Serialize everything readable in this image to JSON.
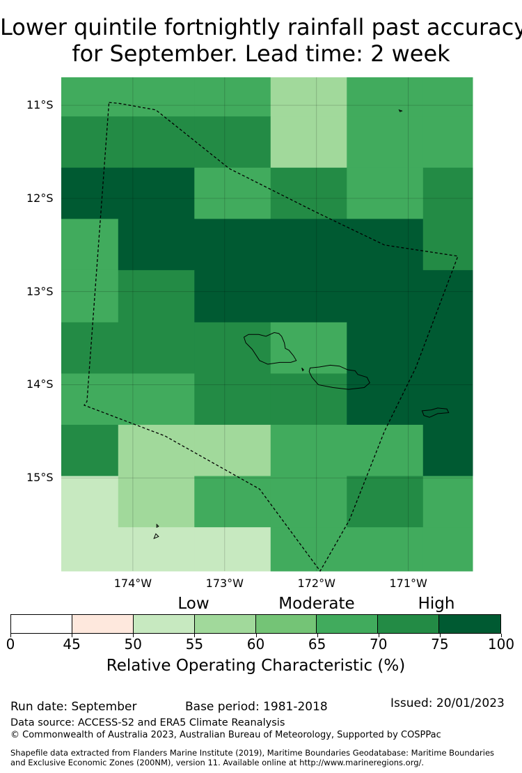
{
  "title": {
    "line1": "Lower quintile fortnightly rainfall past accuracy",
    "line2": "for September. Lead time: 2 week"
  },
  "map": {
    "lon_range": [
      -174.78,
      -170.3
    ],
    "lat_range": [
      -16.0,
      -10.7
    ],
    "lat_ticks": [
      {
        "value": -11,
        "label": "11°S"
      },
      {
        "value": -12,
        "label": "12°S"
      },
      {
        "value": -13,
        "label": "13°S"
      },
      {
        "value": -14,
        "label": "14°S"
      },
      {
        "value": -15,
        "label": "15°S"
      }
    ],
    "lon_ticks": [
      {
        "value": -174,
        "label": "174°W"
      },
      {
        "value": -173,
        "label": "173°W"
      },
      {
        "value": -172,
        "label": "172°W"
      },
      {
        "value": -171,
        "label": "171°W"
      }
    ],
    "grid_lon_edges": [
      -174.78,
      -174.16,
      -173.33,
      -172.5,
      -171.67,
      -170.84,
      -170.3
    ],
    "grid_lat_edges": [
      -10.7,
      -11.12,
      -11.67,
      -12.22,
      -12.77,
      -13.33,
      -13.88,
      -14.43,
      -14.98,
      -15.53,
      -16.0
    ],
    "grid_roc_classes": [
      [
        70,
        70,
        70,
        60,
        70,
        70
      ],
      [
        75,
        75,
        75,
        60,
        70,
        70
      ],
      [
        100,
        100,
        70,
        75,
        70,
        75
      ],
      [
        70,
        100,
        100,
        100,
        100,
        75
      ],
      [
        70,
        75,
        100,
        100,
        100,
        100
      ],
      [
        75,
        75,
        75,
        70,
        100,
        100
      ],
      [
        70,
        70,
        75,
        75,
        100,
        100
      ],
      [
        75,
        60,
        60,
        70,
        70,
        100
      ],
      [
        55,
        60,
        70,
        70,
        75,
        70
      ],
      [
        55,
        55,
        55,
        70,
        70,
        70
      ]
    ],
    "eez_boundary": [
      [
        -174.26,
        -10.97
      ],
      [
        -174.15,
        -10.98
      ],
      [
        -173.75,
        -11.05
      ],
      [
        -172.95,
        -11.68
      ],
      [
        -172.0,
        -12.15
      ],
      [
        -171.26,
        -12.5
      ],
      [
        -170.46,
        -12.62
      ],
      [
        -170.92,
        -13.82
      ],
      [
        -171.26,
        -14.5
      ],
      [
        -171.64,
        -15.45
      ],
      [
        -171.96,
        -16.0
      ],
      [
        -172.62,
        -15.12
      ],
      [
        -173.65,
        -14.55
      ],
      [
        -174.53,
        -14.22
      ],
      [
        -174.5,
        -14.18
      ],
      [
        -174.26,
        -10.97
      ]
    ],
    "coastlines": {
      "savaii": [
        [
          -172.79,
          -13.49
        ],
        [
          -172.74,
          -13.46
        ],
        [
          -172.63,
          -13.46
        ],
        [
          -172.55,
          -13.48
        ],
        [
          -172.46,
          -13.44
        ],
        [
          -172.41,
          -13.45
        ],
        [
          -172.38,
          -13.48
        ],
        [
          -172.35,
          -13.55
        ],
        [
          -172.34,
          -13.61
        ],
        [
          -172.3,
          -13.63
        ],
        [
          -172.25,
          -13.69
        ],
        [
          -172.22,
          -13.74
        ],
        [
          -172.28,
          -13.76
        ],
        [
          -172.4,
          -13.76
        ],
        [
          -172.53,
          -13.78
        ],
        [
          -172.62,
          -13.74
        ],
        [
          -172.7,
          -13.62
        ],
        [
          -172.77,
          -13.55
        ],
        [
          -172.79,
          -13.49
        ]
      ],
      "upolu": [
        [
          -172.07,
          -13.82
        ],
        [
          -171.97,
          -13.81
        ],
        [
          -171.85,
          -13.79
        ],
        [
          -171.75,
          -13.8
        ],
        [
          -171.66,
          -13.84
        ],
        [
          -171.58,
          -13.85
        ],
        [
          -171.55,
          -13.89
        ],
        [
          -171.45,
          -13.92
        ],
        [
          -171.42,
          -13.98
        ],
        [
          -171.48,
          -14.03
        ],
        [
          -171.65,
          -14.05
        ],
        [
          -171.82,
          -14.03
        ],
        [
          -171.98,
          -14.0
        ],
        [
          -172.05,
          -13.92
        ],
        [
          -172.08,
          -13.86
        ],
        [
          -172.07,
          -13.82
        ]
      ],
      "tutuila": [
        [
          -170.85,
          -14.28
        ],
        [
          -170.75,
          -14.27
        ],
        [
          -170.68,
          -14.25
        ],
        [
          -170.58,
          -14.26
        ],
        [
          -170.56,
          -14.3
        ],
        [
          -170.68,
          -14.31
        ],
        [
          -170.77,
          -14.35
        ],
        [
          -170.83,
          -14.33
        ],
        [
          -170.85,
          -14.28
        ]
      ],
      "islets": [
        [
          [
            -171.1,
            -11.05
          ],
          [
            -171.07,
            -11.06
          ],
          [
            -171.09,
            -11.07
          ]
        ],
        [
          [
            -173.74,
            -15.5
          ],
          [
            -173.72,
            -15.52
          ],
          [
            -173.74,
            -15.53
          ]
        ],
        [
          [
            -173.75,
            -15.6
          ],
          [
            -173.72,
            -15.63
          ],
          [
            -173.77,
            -15.65
          ]
        ],
        [
          [
            -172.16,
            -13.82
          ],
          [
            -172.14,
            -13.84
          ],
          [
            -172.15,
            -13.85
          ]
        ]
      ]
    }
  },
  "colorbar": {
    "bins": [
      {
        "from": 0,
        "to": 45,
        "color": "#ffffff"
      },
      {
        "from": 45,
        "to": 50,
        "color": "#fee8dd"
      },
      {
        "from": 50,
        "to": 55,
        "color": "#c7e9c0"
      },
      {
        "from": 55,
        "to": 60,
        "color": "#a1d99b"
      },
      {
        "from": 60,
        "to": 65,
        "color": "#74c476"
      },
      {
        "from": 65,
        "to": 70,
        "color": "#41ab5d"
      },
      {
        "from": 70,
        "to": 75,
        "color": "#238b45"
      },
      {
        "from": 75,
        "to": 100,
        "color": "#005a32"
      }
    ],
    "tick_labels": [
      "0",
      "45",
      "50",
      "55",
      "60",
      "65",
      "70",
      "75",
      "100"
    ],
    "category_low": "Low",
    "category_moderate": "Moderate",
    "category_high": "High",
    "label": "Relative Operating Characteristic (%)"
  },
  "footer": {
    "run_date": "Run date: September",
    "base_period": "Base period: 1981-2018",
    "issued": "Issued: 20/01/2023",
    "data_source": "Data source: ACCESS-S2 and ERA5 Climate Reanalysis",
    "copyright": "© Commonwealth of Australia 2023, Australian Bureau of Meteorology, Supported by COSPPac",
    "shapefile_line1": "Shapefile data extracted from Flanders Marine Institute (2019), Maritime Boundaries Geodatabase: Maritime Boundaries",
    "shapefile_line2": "and Exclusive Economic Zones (200NM), version 11. Available online at http://www.marineregions.org/."
  }
}
